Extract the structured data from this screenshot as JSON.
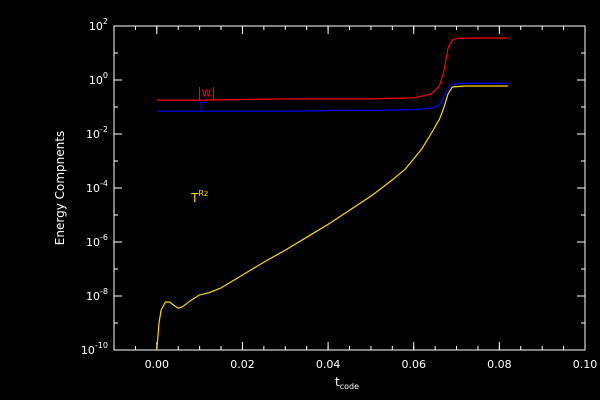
{
  "chart_data": {
    "type": "line",
    "xlabel_main": "t",
    "xlabel_sub": "code",
    "ylabel": "Energy Compnents",
    "xlim": [
      -0.01,
      0.1
    ],
    "ylim_log10": [
      -10,
      2
    ],
    "yscale": "log",
    "grid": false,
    "x_ticks": [
      0.0,
      0.02,
      0.04,
      0.06,
      0.08,
      0.1
    ],
    "x_tick_labels": [
      "0.00",
      "0.02",
      "0.04",
      "0.06",
      "0.08",
      "0.10"
    ],
    "y_ticks_exp": [
      -10,
      -8,
      -6,
      -4,
      -2,
      0,
      2
    ],
    "y_tick_labels": [
      {
        "base": "10",
        "exp": "-10"
      },
      {
        "base": "10",
        "exp": "-8"
      },
      {
        "base": "10",
        "exp": "-6"
      },
      {
        "base": "10",
        "exp": "-4"
      },
      {
        "base": "10",
        "exp": "-2"
      },
      {
        "base": "10",
        "exp": "0"
      },
      {
        "base": "10",
        "exp": "2"
      }
    ],
    "series": [
      {
        "name": "|w|",
        "color": "#ff0000",
        "points": [
          [
            0.0,
            0.18
          ],
          [
            0.01,
            0.18
          ],
          [
            0.02,
            0.19
          ],
          [
            0.03,
            0.2
          ],
          [
            0.04,
            0.2
          ],
          [
            0.05,
            0.2
          ],
          [
            0.06,
            0.22
          ],
          [
            0.064,
            0.3
          ],
          [
            0.066,
            0.6
          ],
          [
            0.067,
            2.0
          ],
          [
            0.068,
            15
          ],
          [
            0.069,
            30
          ],
          [
            0.07,
            35
          ],
          [
            0.075,
            36
          ],
          [
            0.082,
            36
          ]
        ]
      },
      {
        "name": "T",
        "color": "#0000ff",
        "points": [
          [
            0.0,
            0.07
          ],
          [
            0.01,
            0.07
          ],
          [
            0.02,
            0.07
          ],
          [
            0.03,
            0.07
          ],
          [
            0.038,
            0.072
          ],
          [
            0.04,
            0.075
          ],
          [
            0.05,
            0.075
          ],
          [
            0.06,
            0.08
          ],
          [
            0.064,
            0.09
          ],
          [
            0.066,
            0.12
          ],
          [
            0.067,
            0.25
          ],
          [
            0.068,
            0.5
          ],
          [
            0.069,
            0.7
          ],
          [
            0.072,
            0.75
          ],
          [
            0.082,
            0.75
          ]
        ]
      },
      {
        "name": "T^Rz",
        "color": "#ffd700",
        "points": [
          [
            0.0,
            1e-10
          ],
          [
            0.0005,
            1e-09
          ],
          [
            0.001,
            3e-09
          ],
          [
            0.002,
            6e-09
          ],
          [
            0.003,
            6e-09
          ],
          [
            0.004,
            4.5e-09
          ],
          [
            0.005,
            3.5e-09
          ],
          [
            0.006,
            4e-09
          ],
          [
            0.008,
            7e-09
          ],
          [
            0.01,
            1.1e-08
          ],
          [
            0.012,
            1.3e-08
          ],
          [
            0.015,
            2e-08
          ],
          [
            0.02,
            6e-08
          ],
          [
            0.025,
            1.8e-07
          ],
          [
            0.03,
            5e-07
          ],
          [
            0.035,
            1.5e-06
          ],
          [
            0.04,
            4.5e-06
          ],
          [
            0.045,
            1.5e-05
          ],
          [
            0.05,
            5e-05
          ],
          [
            0.055,
            0.0002
          ],
          [
            0.058,
            0.0005
          ],
          [
            0.06,
            0.0012
          ],
          [
            0.062,
            0.003
          ],
          [
            0.064,
            0.01
          ],
          [
            0.066,
            0.035
          ],
          [
            0.067,
            0.09
          ],
          [
            0.068,
            0.3
          ],
          [
            0.069,
            0.55
          ],
          [
            0.072,
            0.6
          ],
          [
            0.082,
            0.6
          ]
        ]
      }
    ],
    "annotations": [
      {
        "base": "|w|",
        "sup": "",
        "color": "#ff0000",
        "x": 0.0095,
        "y": 0.25
      },
      {
        "base": "T",
        "sup": "",
        "color": "#0000ff",
        "x": 0.0095,
        "y": 0.07
      },
      {
        "base": "T",
        "sup": "Rz",
        "color": "#ffd700",
        "x": 0.008,
        "y": 3e-05
      }
    ]
  }
}
